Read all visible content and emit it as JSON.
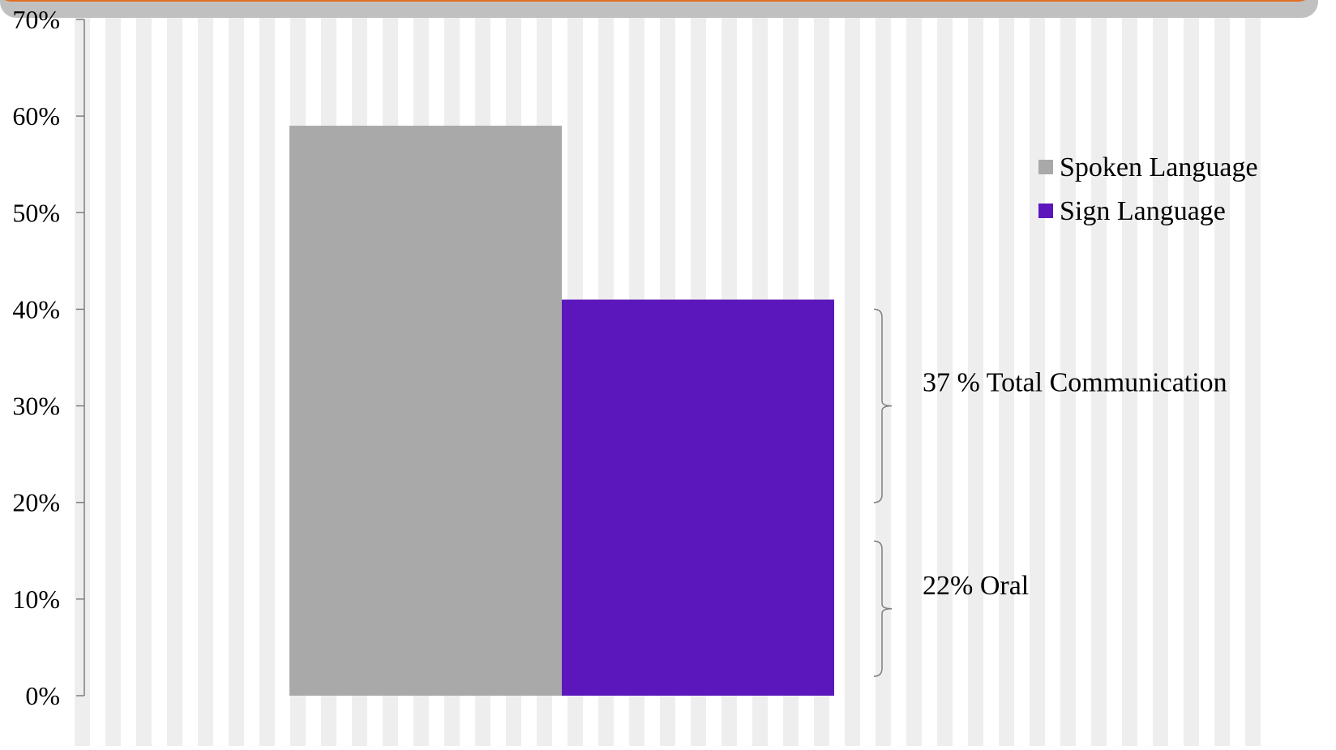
{
  "chart_data": {
    "type": "bar",
    "categories": [
      ""
    ],
    "series": [
      {
        "name": "Spoken Language",
        "values": [
          59
        ],
        "color": "#a9a9a9"
      },
      {
        "name": "Sign Language",
        "values": [
          41
        ],
        "color": "#5b17bc"
      }
    ],
    "y_ticks": [
      "0%",
      "10%",
      "20%",
      "30%",
      "40%",
      "50%",
      "60%",
      "70%"
    ],
    "ylim": [
      0,
      70
    ],
    "y_unit": "%",
    "title": "",
    "xlabel": "",
    "ylabel": "",
    "grid": false,
    "legend_position": "right",
    "annotations": [
      {
        "label": "37 % Total Communication",
        "range": [
          20,
          40
        ]
      },
      {
        "label": "22% Oral",
        "range": [
          2,
          16
        ]
      }
    ]
  },
  "colors": {
    "header_bar": "#c0c0c0",
    "header_accent": "#e07020",
    "stripe": "#eeeeee",
    "axis": "#7f7f7f"
  }
}
